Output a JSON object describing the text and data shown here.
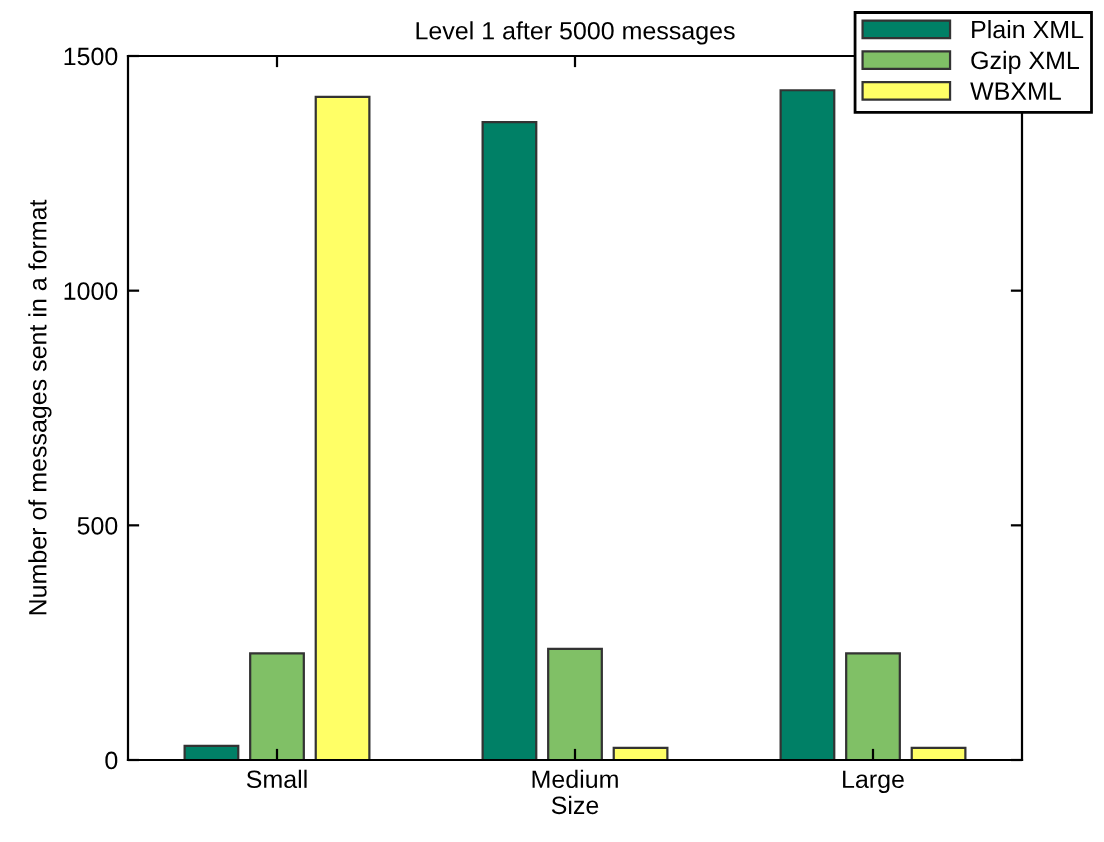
{
  "chart_data": {
    "type": "bar",
    "title": "Level 1 after 5000 messages",
    "xlabel": "Size",
    "ylabel": "Number of messages sent in a format",
    "categories": [
      "Small",
      "Medium",
      "Large"
    ],
    "series": [
      {
        "name": "Plain XML",
        "color": "#008066",
        "values": [
          30,
          1359,
          1427
        ]
      },
      {
        "name": "Gzip XML",
        "color": "#80c066",
        "values": [
          227,
          237,
          227
        ]
      },
      {
        "name": "WBXML",
        "color": "#ffff66",
        "values": [
          1413,
          26,
          26
        ]
      }
    ],
    "ylim": [
      0,
      1500
    ],
    "yticks": [
      0,
      500,
      1000,
      1500
    ],
    "grid": false,
    "legend": "top right"
  }
}
